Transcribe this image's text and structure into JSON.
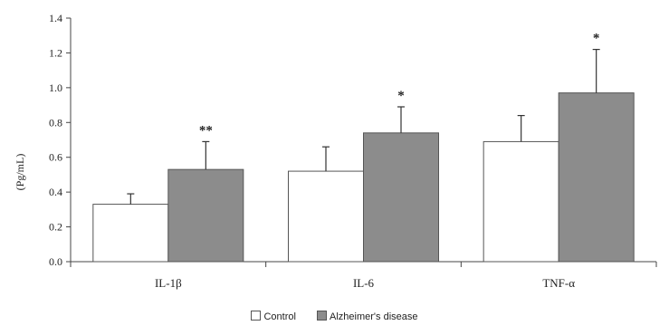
{
  "chart_data": {
    "type": "bar",
    "title": "",
    "xlabel": "",
    "ylabel": "(Pg/mL)",
    "categories": [
      "IL-1β",
      "IL-6",
      "TNF-α"
    ],
    "ylim": [
      0,
      1.4
    ],
    "yticks": [
      "0.0",
      "0.2",
      "0.4",
      "0.6",
      "0.8",
      "1.0",
      "1.2",
      "1.4"
    ],
    "series": [
      {
        "name": "Control",
        "color": "#ffffff",
        "values": [
          0.33,
          0.52,
          0.69
        ],
        "errors": [
          0.06,
          0.14,
          0.15
        ]
      },
      {
        "name": "Alzheimer's disease",
        "color": "#8c8c8c",
        "values": [
          0.53,
          0.74,
          0.97
        ],
        "errors": [
          0.16,
          0.15,
          0.25
        ]
      }
    ],
    "annotations": [
      "**",
      "*",
      "*"
    ],
    "grid": false,
    "legend_position": "bottom"
  }
}
